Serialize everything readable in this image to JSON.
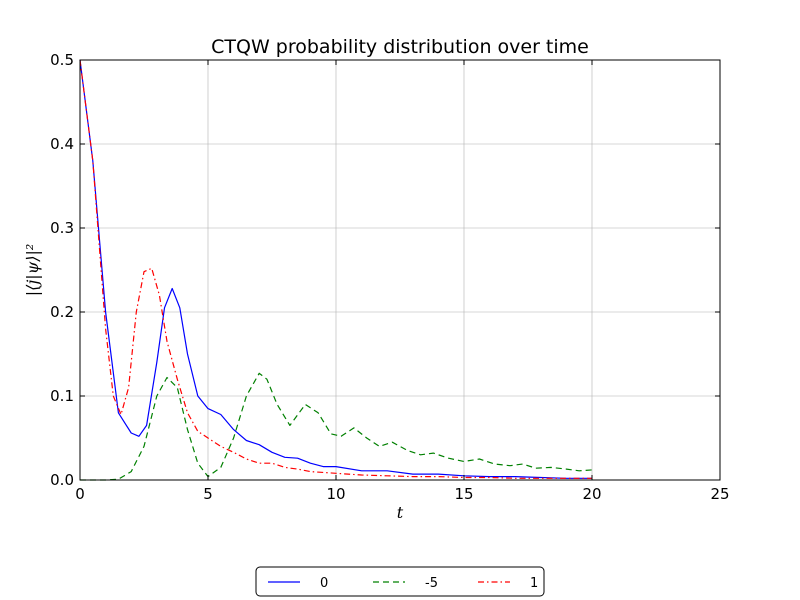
{
  "chart_data": {
    "type": "line",
    "title": "CTQW probability distribution over time",
    "xlabel": "t",
    "ylabel": "|⟨j|ψ⟩|²",
    "xlim": [
      0,
      25
    ],
    "ylim": [
      0,
      0.5
    ],
    "xticks": [
      "0",
      "5",
      "10",
      "15",
      "20",
      "25"
    ],
    "yticks": [
      "0.0",
      "0.1",
      "0.2",
      "0.3",
      "0.4",
      "0.5"
    ],
    "grid": true,
    "legend_position": "bottom-center, below plot",
    "series": [
      {
        "name": "0",
        "color": "#0000ff",
        "style": "solid",
        "x": [
          0,
          0.5,
          1.0,
          1.5,
          2.0,
          2.3,
          2.6,
          3.0,
          3.3,
          3.6,
          3.9,
          4.2,
          4.6,
          5.0,
          5.5,
          6.0,
          6.5,
          7.0,
          7.5,
          8.0,
          8.5,
          9.0,
          9.5,
          10.0,
          11.0,
          12.0,
          13.0,
          14.0,
          15.0,
          16.0,
          17.0,
          18.0,
          19.0,
          20.0
        ],
        "y": [
          0.5,
          0.38,
          0.2,
          0.08,
          0.056,
          0.052,
          0.065,
          0.14,
          0.205,
          0.228,
          0.205,
          0.15,
          0.1,
          0.085,
          0.078,
          0.06,
          0.047,
          0.042,
          0.033,
          0.027,
          0.026,
          0.02,
          0.016,
          0.016,
          0.011,
          0.011,
          0.007,
          0.007,
          0.005,
          0.004,
          0.004,
          0.003,
          0.002,
          0.002
        ]
      },
      {
        "name": "-5",
        "color": "#008000",
        "style": "dashed",
        "x": [
          0,
          0.5,
          1.0,
          1.5,
          2.0,
          2.5,
          3.0,
          3.4,
          3.8,
          4.2,
          4.6,
          5.0,
          5.5,
          6.0,
          6.5,
          7.0,
          7.3,
          7.7,
          8.2,
          8.8,
          9.3,
          9.8,
          10.2,
          10.7,
          11.2,
          11.7,
          12.2,
          12.8,
          13.3,
          13.8,
          14.4,
          15.0,
          15.6,
          16.2,
          16.8,
          17.3,
          17.8,
          18.4,
          19.0,
          19.5,
          20.0
        ],
        "y": [
          0,
          0,
          0,
          0.001,
          0.01,
          0.04,
          0.1,
          0.122,
          0.11,
          0.06,
          0.02,
          0.004,
          0.015,
          0.05,
          0.1,
          0.127,
          0.12,
          0.09,
          0.065,
          0.09,
          0.08,
          0.055,
          0.052,
          0.062,
          0.05,
          0.04,
          0.045,
          0.035,
          0.03,
          0.032,
          0.026,
          0.022,
          0.025,
          0.019,
          0.017,
          0.019,
          0.014,
          0.015,
          0.013,
          0.011,
          0.012
        ]
      },
      {
        "name": "1",
        "color": "#ff0000",
        "style": "dashdot",
        "x": [
          0,
          0.5,
          1.0,
          1.3,
          1.6,
          1.9,
          2.2,
          2.5,
          2.8,
          3.1,
          3.4,
          3.8,
          4.2,
          4.6,
          5.0,
          5.5,
          6.0,
          6.5,
          7.0,
          7.5,
          8.0,
          8.5,
          9.0,
          10.0,
          11.0,
          12.0,
          13.0,
          14.0,
          15.0,
          16.0,
          17.0,
          18.0,
          19.0,
          20.0
        ],
        "y": [
          0.5,
          0.38,
          0.18,
          0.1,
          0.078,
          0.11,
          0.2,
          0.248,
          0.252,
          0.22,
          0.165,
          0.12,
          0.08,
          0.058,
          0.05,
          0.04,
          0.033,
          0.025,
          0.02,
          0.02,
          0.015,
          0.013,
          0.01,
          0.008,
          0.006,
          0.005,
          0.004,
          0.004,
          0.003,
          0.003,
          0.002,
          0.002,
          0.002,
          0.002
        ]
      }
    ]
  }
}
